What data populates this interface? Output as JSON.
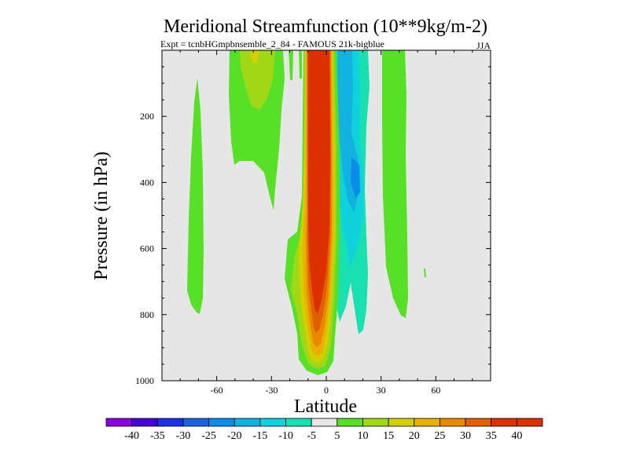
{
  "chart_data": {
    "type": "contour",
    "title": "Meridional Streamfunction (10**9kg/m-2)",
    "subtitle_left": "Expt = tcnbHGmpbnsemble_2_84 - FAMOUS 21k-bigblue",
    "subtitle_right": "JJA",
    "xlabel": "Latitude",
    "ylabel": "Pressure (in hPa)",
    "xlim": [
      -90,
      90
    ],
    "ylim": [
      1000,
      0
    ],
    "x_ticks": [
      -60,
      -30,
      0,
      30,
      60
    ],
    "y_ticks": [
      200,
      400,
      600,
      800,
      1000
    ],
    "colorbar": {
      "levels": [
        -40,
        -35,
        -30,
        -25,
        -20,
        -15,
        -10,
        -5,
        5,
        10,
        15,
        20,
        25,
        30,
        35,
        40
      ],
      "colors": [
        "#8a00e0",
        "#4400d8",
        "#1c30e8",
        "#1a62e0",
        "#0b8ce8",
        "#12b2e0",
        "#10d2dc",
        "#18e0b0",
        "#e6e6e6",
        "#58e028",
        "#a0d818",
        "#d4d000",
        "#e8b000",
        "#e88800",
        "#e06000",
        "#dc3000",
        "#dc3000"
      ]
    },
    "regions": [
      {
        "label": "positive core",
        "value": 40,
        "lat_range": [
          -5,
          4
        ],
        "p_range": [
          20,
          950
        ]
      },
      {
        "label": "southern positive lobe",
        "value": 10,
        "lat_range": [
          -68,
          -20
        ],
        "p_range": [
          20,
          790
        ]
      },
      {
        "label": "equatorial negative cell",
        "value": -15,
        "lat_range": [
          4,
          22
        ],
        "p_range": [
          20,
          860
        ]
      },
      {
        "label": "northern positive lobe",
        "value": 10,
        "lat_range": [
          28,
          45
        ],
        "p_range": [
          20,
          800
        ]
      }
    ]
  }
}
